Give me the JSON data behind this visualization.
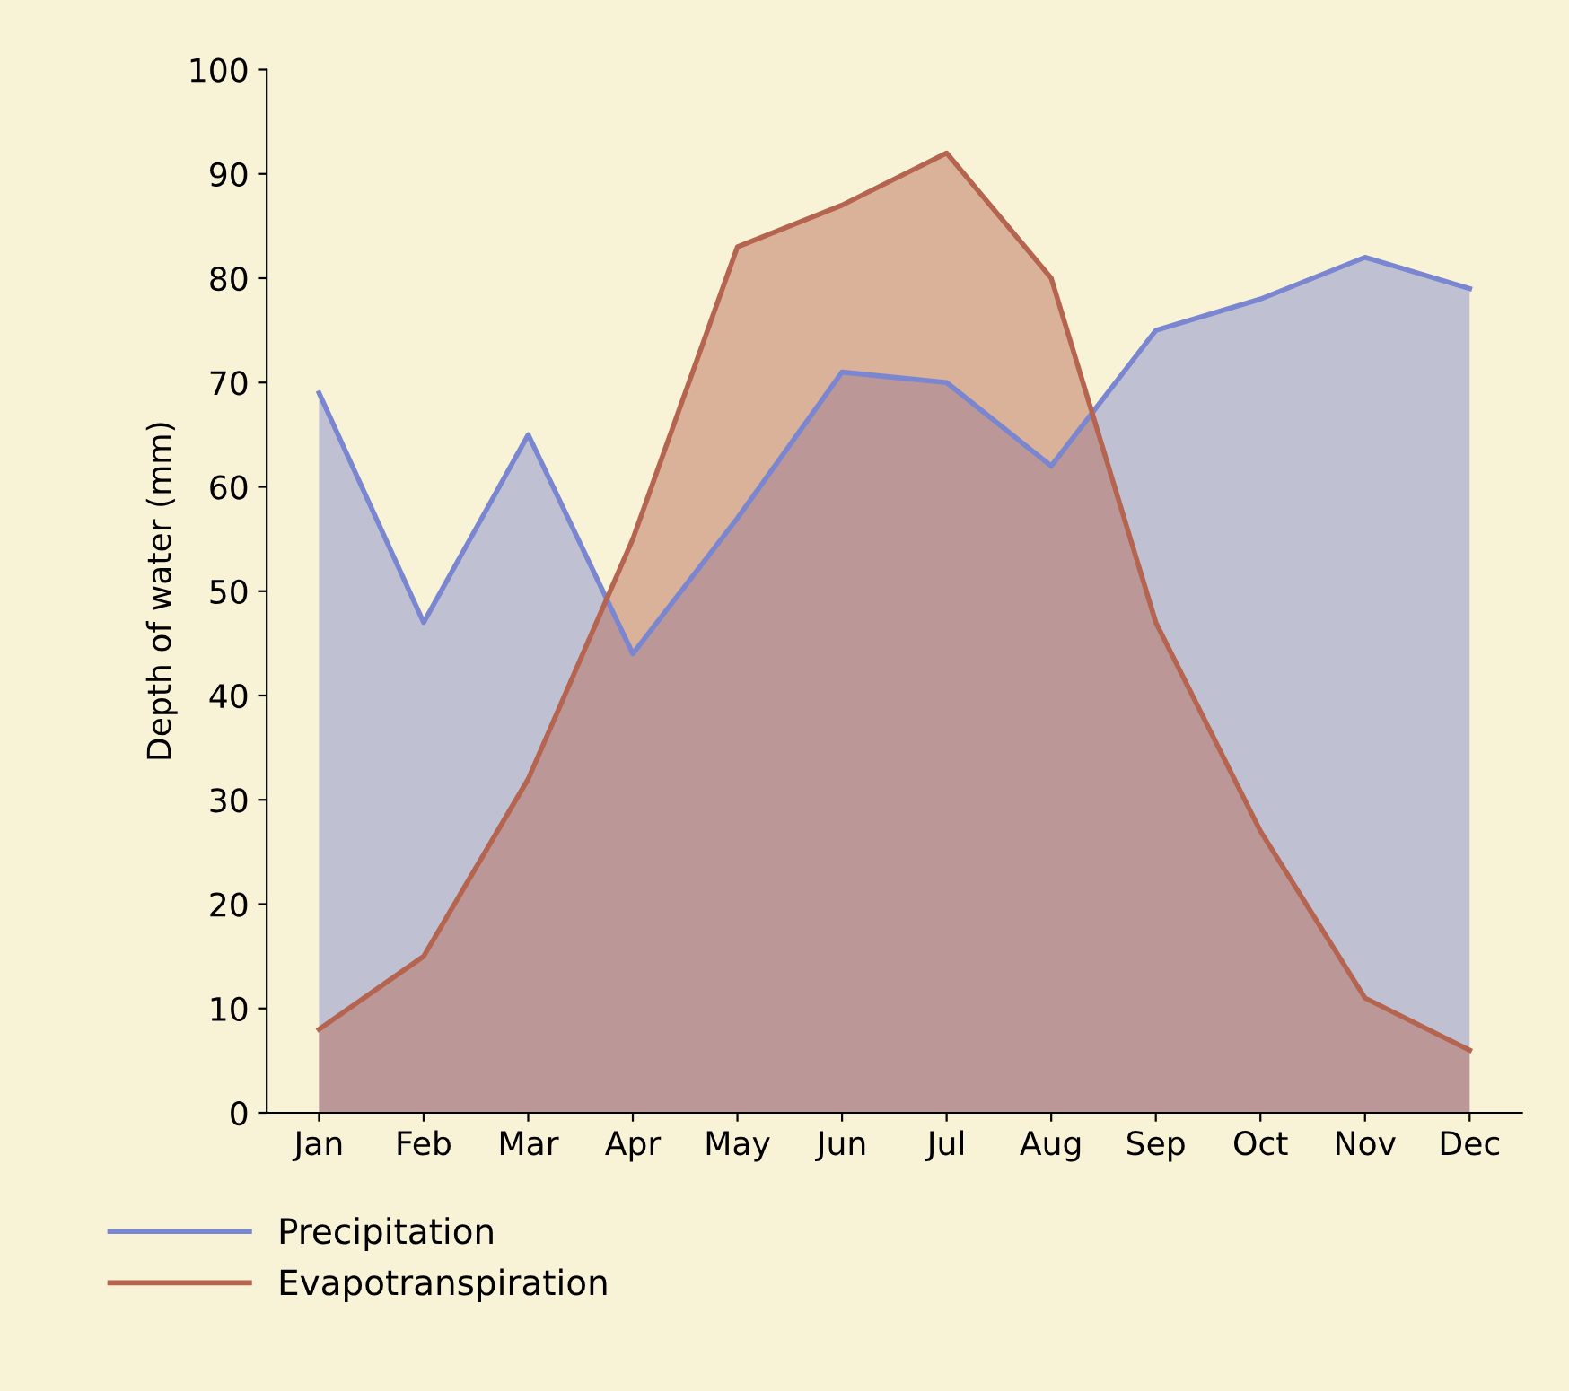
{
  "chart_data": {
    "type": "area",
    "ylabel": "Depth of water (mm)",
    "categories": [
      "Jan",
      "Feb",
      "Mar",
      "Apr",
      "May",
      "Jun",
      "Jul",
      "Aug",
      "Sep",
      "Oct",
      "Nov",
      "Dec"
    ],
    "series": [
      {
        "name": "Precipitation",
        "color": "#7b86d0",
        "values": [
          69,
          47,
          65,
          44,
          57,
          71,
          70,
          62,
          75,
          78,
          82,
          79
        ]
      },
      {
        "name": "Evapotranspiration",
        "color": "#b5644f",
        "values": [
          8,
          15,
          32,
          55,
          83,
          87,
          92,
          80,
          47,
          27,
          11,
          6
        ]
      }
    ],
    "ylim": [
      0,
      100
    ],
    "yticks": [
      0,
      10,
      20,
      30,
      40,
      50,
      60,
      70,
      80,
      90,
      100
    ],
    "legend": "bottom left",
    "grid": false
  }
}
